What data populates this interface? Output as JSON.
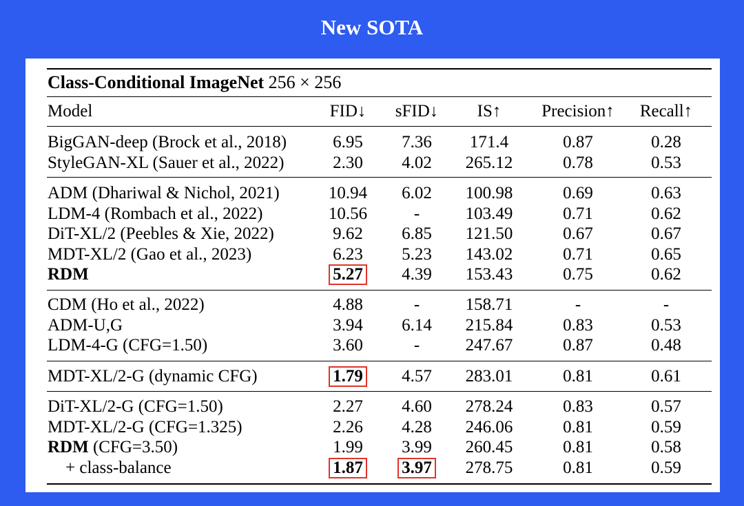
{
  "title": "New SOTA",
  "table": {
    "caption_bold": "Class-Conditional ImageNet",
    "caption_rest": "256 × 256",
    "headers": {
      "model": "Model",
      "fid": "FID↓",
      "sfid": "sFID↓",
      "is": "IS↑",
      "precision": "Precision↑",
      "recall": "Recall↑"
    },
    "rows": [
      {
        "model": "BigGAN-deep (Brock et al., 2018)",
        "fid": "6.95",
        "sfid": "7.36",
        "is": "171.4",
        "precision": "0.87",
        "recall": "0.28"
      },
      {
        "model": "StyleGAN-XL (Sauer et al., 2022)",
        "fid": "2.30",
        "sfid": "4.02",
        "is": "265.12",
        "precision": "0.78",
        "recall": "0.53"
      },
      {
        "model": "ADM (Dhariwal & Nichol, 2021)",
        "fid": "10.94",
        "sfid": "6.02",
        "is": "100.98",
        "precision": "0.69",
        "recall": "0.63"
      },
      {
        "model": "LDM-4 (Rombach et al., 2022)",
        "fid": "10.56",
        "sfid": "-",
        "is": "103.49",
        "precision": "0.71",
        "recall": "0.62"
      },
      {
        "model": "DiT-XL/2 (Peebles & Xie, 2022)",
        "fid": "9.62",
        "sfid": "6.85",
        "is": "121.50",
        "precision": "0.67",
        "recall": "0.67"
      },
      {
        "model": "MDT-XL/2 (Gao et al., 2023)",
        "fid": "6.23",
        "sfid": "5.23",
        "is": "143.02",
        "precision": "0.71",
        "recall": "0.65"
      },
      {
        "model": "RDM",
        "fid": "5.27",
        "sfid": "4.39",
        "is": "153.43",
        "precision": "0.75",
        "recall": "0.62"
      },
      {
        "model": "CDM (Ho et al., 2022)",
        "fid": "4.88",
        "sfid": "-",
        "is": "158.71",
        "precision": "-",
        "recall": "-"
      },
      {
        "model": "ADM-U,G",
        "fid": "3.94",
        "sfid": "6.14",
        "is": "215.84",
        "precision": "0.83",
        "recall": "0.53"
      },
      {
        "model": "LDM-4-G (CFG=1.50)",
        "fid": "3.60",
        "sfid": "-",
        "is": "247.67",
        "precision": "0.87",
        "recall": "0.48"
      },
      {
        "model": "MDT-XL/2-G (dynamic CFG)",
        "fid": "1.79",
        "sfid": "4.57",
        "is": "283.01",
        "precision": "0.81",
        "recall": "0.61"
      },
      {
        "model": "DiT-XL/2-G (CFG=1.50)",
        "fid": "2.27",
        "sfid": "4.60",
        "is": "278.24",
        "precision": "0.83",
        "recall": "0.57"
      },
      {
        "model": "MDT-XL/2-G (CFG=1.325)",
        "fid": "2.26",
        "sfid": "4.28",
        "is": "246.06",
        "precision": "0.81",
        "recall": "0.59"
      },
      {
        "model_bold": "RDM",
        "model_rest": " (CFG=3.50)",
        "fid": "1.99",
        "sfid": "3.99",
        "is": "260.45",
        "precision": "0.81",
        "recall": "0.58"
      },
      {
        "model": "+ class-balance",
        "fid": "1.87",
        "sfid": "3.97",
        "is": "278.75",
        "precision": "0.81",
        "recall": "0.59"
      }
    ]
  }
}
